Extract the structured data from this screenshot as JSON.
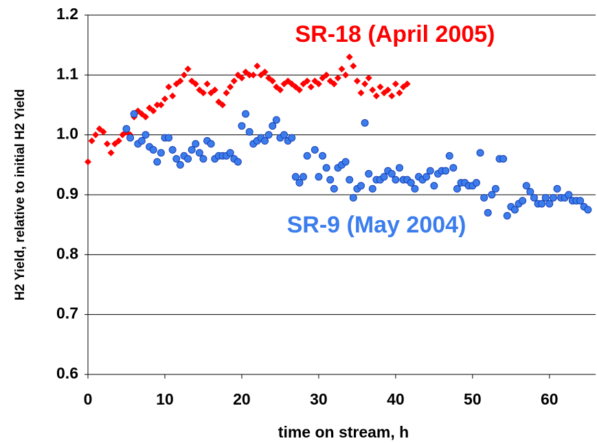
{
  "chart_data": {
    "type": "scatter",
    "xlabel": "time on stream, h",
    "ylabel": "H2 Yield, relative to initial H2 Yield",
    "xlim": [
      0,
      66
    ],
    "ylim": [
      0.6,
      1.2
    ],
    "xticks": [
      0,
      10,
      20,
      30,
      40,
      50,
      60
    ],
    "yticks": [
      0.6,
      0.7,
      0.8,
      0.9,
      {
        "value": 1,
        "label": "1.0"
      },
      1.1,
      1.2
    ],
    "grid": true,
    "series": [
      {
        "name": "SR-18 (April 2005)",
        "color": "#ff0000",
        "marker": "diamond",
        "x": [
          0,
          0.5,
          1,
          1.5,
          2,
          2.5,
          3,
          3.5,
          4,
          4.5,
          5,
          5.5,
          6,
          6.5,
          7,
          7.5,
          8,
          8.5,
          9,
          9.5,
          10,
          10.5,
          11,
          11.5,
          12,
          12.5,
          13,
          13.5,
          14,
          14.5,
          15,
          15.5,
          16,
          16.5,
          17,
          17.5,
          18,
          18.5,
          19,
          19.5,
          20,
          20.5,
          21,
          21.5,
          22,
          22.5,
          23,
          23.5,
          24,
          24.5,
          25,
          25.5,
          26,
          26.5,
          27,
          27.5,
          28,
          28.5,
          29,
          29.5,
          30,
          30.5,
          31,
          31.5,
          32,
          32.5,
          33,
          33.5,
          34,
          34.5,
          35,
          35.5,
          36,
          36.5,
          37,
          37.5,
          38,
          38.5,
          39,
          39.5,
          40,
          40.5,
          41,
          41.5
        ],
        "values": [
          0.955,
          0.99,
          1.0,
          1.01,
          1.005,
          0.985,
          0.97,
          0.985,
          0.99,
          1.0,
          1.005,
          1.0,
          1.03,
          1.04,
          1.035,
          1.03,
          1.045,
          1.04,
          1.05,
          1.05,
          1.06,
          1.08,
          1.065,
          1.085,
          1.09,
          1.1,
          1.11,
          1.09,
          1.085,
          1.075,
          1.07,
          1.085,
          1.07,
          1.075,
          1.055,
          1.05,
          1.07,
          1.08,
          1.09,
          1.1,
          1.095,
          1.105,
          1.1,
          1.1,
          1.115,
          1.1,
          1.105,
          1.095,
          1.09,
          1.08,
          1.075,
          1.085,
          1.09,
          1.085,
          1.08,
          1.075,
          1.085,
          1.09,
          1.08,
          1.09,
          1.085,
          1.095,
          1.1,
          1.09,
          1.085,
          1.095,
          1.11,
          1.1,
          1.13,
          1.115,
          1.09,
          1.07,
          1.085,
          1.095,
          1.075,
          1.065,
          1.08,
          1.07,
          1.075,
          1.065,
          1.085,
          1.07,
          1.08,
          1.085
        ]
      },
      {
        "name": "SR-9 (May 2004)",
        "color": "#3b7ded",
        "marker": "circle",
        "x": [
          5,
          5.5,
          6,
          6.5,
          7,
          7.5,
          8,
          8.5,
          9,
          9.5,
          10,
          10.5,
          11,
          11.5,
          12,
          12.5,
          13,
          13.5,
          14,
          14.5,
          15,
          15.5,
          16,
          16.5,
          17,
          17.5,
          18,
          18.5,
          19,
          19.5,
          20,
          20.5,
          21,
          21.5,
          22,
          22.5,
          23,
          23.5,
          24,
          24.5,
          25,
          25.5,
          26,
          26.5,
          27,
          27.5,
          28,
          28.5,
          29.5,
          30,
          30.5,
          31,
          31.5,
          32,
          32.5,
          33,
          33.5,
          34,
          34.5,
          35,
          35.5,
          36,
          36.5,
          37,
          37.5,
          38,
          38.5,
          39,
          39.5,
          40,
          40.5,
          41,
          41.5,
          42,
          42.5,
          43,
          43.5,
          44,
          44.5,
          45,
          45.5,
          46,
          46.5,
          47,
          47.5,
          48,
          48.5,
          49,
          49.5,
          50,
          50.5,
          51,
          51.5,
          52,
          52.5,
          53,
          53.5,
          54,
          54.5,
          55,
          55.5,
          56,
          56.5,
          57,
          57.5,
          58,
          58.5,
          59,
          59.5,
          60,
          60.5,
          61,
          61.5,
          62,
          62.5,
          63,
          63.5,
          64,
          64.5,
          65
        ],
        "values": [
          1.01,
          0.995,
          1.035,
          0.985,
          0.99,
          1.0,
          0.98,
          0.975,
          0.955,
          0.97,
          0.995,
          0.995,
          0.975,
          0.96,
          0.95,
          0.965,
          0.96,
          0.975,
          0.985,
          0.97,
          0.96,
          0.99,
          0.985,
          0.96,
          0.965,
          0.965,
          0.965,
          0.97,
          0.96,
          0.955,
          1.015,
          1.035,
          1.005,
          0.985,
          0.99,
          0.995,
          0.99,
          1.0,
          1.015,
          1.025,
          0.995,
          1.0,
          0.99,
          0.995,
          0.93,
          0.92,
          0.93,
          0.965,
          0.975,
          0.93,
          0.965,
          0.945,
          0.925,
          0.91,
          0.945,
          0.95,
          0.955,
          0.925,
          0.895,
          0.91,
          0.915,
          1.02,
          0.935,
          0.91,
          0.925,
          0.925,
          0.93,
          0.94,
          0.935,
          0.925,
          0.945,
          0.925,
          0.925,
          0.92,
          0.91,
          0.93,
          0.925,
          0.93,
          0.94,
          0.915,
          0.935,
          0.94,
          0.94,
          0.965,
          0.945,
          0.91,
          0.92,
          0.92,
          0.915,
          0.915,
          0.92,
          0.97,
          0.895,
          0.87,
          0.9,
          0.91,
          0.96,
          0.96,
          0.865,
          0.88,
          0.875,
          0.885,
          0.89,
          0.915,
          0.905,
          0.895,
          0.885,
          0.885,
          0.895,
          0.885,
          0.895,
          0.91,
          0.895,
          0.895,
          0.9,
          0.89,
          0.89,
          0.89,
          0.88,
          0.875
        ]
      }
    ]
  }
}
